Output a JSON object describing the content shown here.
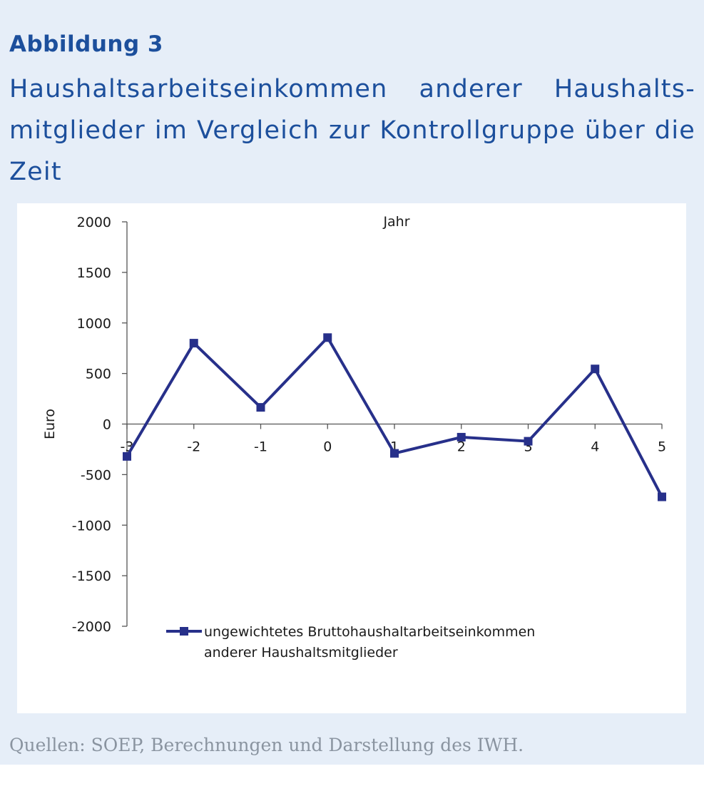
{
  "figure_label": "Abbildung 3",
  "figure_title": "Haushaltsarbeitseinkommen anderer Haushalts-mitglieder im Vergleich zur Kontrollgruppe über die Zeit",
  "source_note": "Quellen: SOEP, Berechnungen und Darstellung des IWH.",
  "colors": {
    "panel_background": "#e6eef8",
    "title": "#1c4f9c",
    "series": "#27308a",
    "source_text": "#8a94a0"
  },
  "chart_data": {
    "type": "line",
    "title": "",
    "xlabel": "Jahr",
    "ylabel": "Euro",
    "x": [
      -3,
      -2,
      -1,
      0,
      1,
      2,
      3,
      4,
      5
    ],
    "x_tick_labels": [
      "-3",
      "-2",
      "-1",
      "0",
      "1",
      "2",
      "3",
      "4",
      "5"
    ],
    "ylim": [
      -2000,
      2000
    ],
    "y_ticks": [
      2000,
      1500,
      1000,
      500,
      0,
      -500,
      -1000,
      -1500,
      -2000
    ],
    "y_tick_labels": [
      "2000",
      "1500",
      "1000",
      "500",
      "0",
      "-500",
      "-1000",
      "-1500",
      "-2000"
    ],
    "grid": false,
    "legend_position": "bottom",
    "series": [
      {
        "name": "ungewichtetes Bruttohaushaltarbeitseinkommen anderer Haushaltsmitglieder",
        "legend_lines": [
          "ungewichtetes Bruttohaushaltarbeitseinkommen",
          "anderer Haushaltsmitglieder"
        ],
        "marker": "square",
        "values": [
          -320,
          800,
          165,
          855,
          -290,
          -130,
          -170,
          545,
          -720
        ]
      }
    ]
  }
}
